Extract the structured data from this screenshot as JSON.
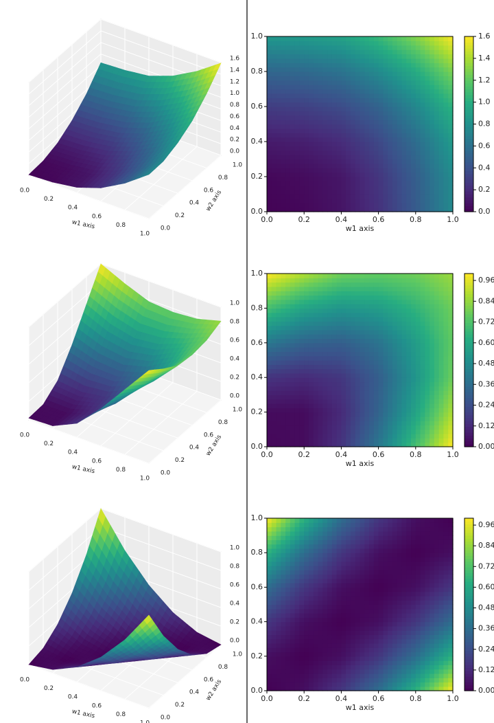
{
  "chart_data": [
    {
      "type": "surface3d",
      "colormap": "viridis",
      "xlabel": "w1 axis",
      "ylabel": "w2 axis",
      "x": [
        0,
        0.2,
        0.4,
        0.6,
        0.8,
        1
      ],
      "y": [
        0,
        0.2,
        0.4,
        0.6,
        0.8,
        1
      ],
      "z": [
        [
          0.01,
          0.03,
          0.09,
          0.23,
          0.46,
          0.76
        ],
        [
          0.03,
          0.05,
          0.1,
          0.25,
          0.48,
          0.77
        ],
        [
          0.12,
          0.14,
          0.2,
          0.35,
          0.57,
          0.87
        ],
        [
          0.29,
          0.31,
          0.37,
          0.51,
          0.74,
          1.03
        ],
        [
          0.53,
          0.55,
          0.61,
          0.76,
          0.98,
          1.28
        ],
        [
          0.85,
          0.87,
          0.92,
          1.07,
          1.3,
          1.59
        ]
      ],
      "xlim": [
        0,
        1
      ],
      "ylim": [
        0,
        1
      ],
      "zlim": [
        0,
        1.6
      ],
      "xticks": [
        {
          "value": 0,
          "label": "0.0"
        },
        {
          "value": 0.2,
          "label": "0.2"
        },
        {
          "value": 0.4,
          "label": "0.4"
        },
        {
          "value": 0.6,
          "label": "0.6"
        },
        {
          "value": 0.8,
          "label": "0.8"
        },
        {
          "value": 1,
          "label": "1.0"
        }
      ],
      "yticks": [
        {
          "value": 0,
          "label": "0.0"
        },
        {
          "value": 0.2,
          "label": "0.2"
        },
        {
          "value": 0.4,
          "label": "0.4"
        },
        {
          "value": 0.6,
          "label": "0.6"
        },
        {
          "value": 0.8,
          "label": "0.8"
        },
        {
          "value": 1,
          "label": "1.0"
        }
      ],
      "zticks": [
        {
          "value": 0,
          "label": "0.0"
        },
        {
          "value": 0.2,
          "label": "0.2"
        },
        {
          "value": 0.4,
          "label": "0.4"
        },
        {
          "value": 0.6,
          "label": "0.6"
        },
        {
          "value": 0.8,
          "label": "0.8"
        },
        {
          "value": 1,
          "label": "1.0"
        },
        {
          "value": 1.2,
          "label": "1.2"
        },
        {
          "value": 1.4,
          "label": "1.4"
        },
        {
          "value": 1.6,
          "label": "1.6"
        }
      ]
    },
    {
      "type": "contour",
      "colormap": "viridis",
      "xlabel": "w1 axis",
      "x": [
        0,
        0.2,
        0.4,
        0.6,
        0.8,
        1
      ],
      "y": [
        0,
        0.2,
        0.4,
        0.6,
        0.8,
        1
      ],
      "z": [
        [
          0.01,
          0.03,
          0.09,
          0.23,
          0.46,
          0.76
        ],
        [
          0.03,
          0.05,
          0.1,
          0.25,
          0.48,
          0.77
        ],
        [
          0.12,
          0.14,
          0.2,
          0.35,
          0.57,
          0.87
        ],
        [
          0.29,
          0.31,
          0.37,
          0.51,
          0.74,
          1.03
        ],
        [
          0.53,
          0.55,
          0.61,
          0.76,
          0.98,
          1.28
        ],
        [
          0.85,
          0.87,
          0.92,
          1.07,
          1.3,
          1.59
        ]
      ],
      "xlim": [
        0,
        1
      ],
      "ylim": [
        0,
        1
      ],
      "clim": [
        0,
        1.6
      ],
      "xticks": [
        {
          "value": 0,
          "label": "0.0"
        },
        {
          "value": 0.2,
          "label": "0.2"
        },
        {
          "value": 0.4,
          "label": "0.4"
        },
        {
          "value": 0.6,
          "label": "0.6"
        },
        {
          "value": 0.8,
          "label": "0.8"
        },
        {
          "value": 1,
          "label": "1.0"
        }
      ],
      "yticks": [
        {
          "value": 0,
          "label": "0.0"
        },
        {
          "value": 0.2,
          "label": "0.2"
        },
        {
          "value": 0.4,
          "label": "0.4"
        },
        {
          "value": 0.6,
          "label": "0.6"
        },
        {
          "value": 0.8,
          "label": "0.8"
        },
        {
          "value": 1,
          "label": "1.0"
        }
      ],
      "cticks": [
        {
          "value": 0,
          "label": "0.0"
        },
        {
          "value": 0.2,
          "label": "0.2"
        },
        {
          "value": 0.4,
          "label": "0.4"
        },
        {
          "value": 0.6,
          "label": "0.6"
        },
        {
          "value": 0.8,
          "label": "0.8"
        },
        {
          "value": 1,
          "label": "1.0"
        },
        {
          "value": 1.2,
          "label": "1.2"
        },
        {
          "value": 1.4,
          "label": "1.4"
        },
        {
          "value": 1.6,
          "label": "1.6"
        }
      ]
    },
    {
      "type": "surface3d",
      "colormap": "viridis",
      "xlabel": "w1 axis",
      "ylabel": "w2 axis",
      "x": [
        0,
        0.2,
        0.4,
        0.6,
        0.8,
        1
      ],
      "y": [
        0,
        0.2,
        0.4,
        0.6,
        0.8,
        1
      ],
      "z": [
        [
          0.02,
          0.03,
          0.15,
          0.4,
          0.7,
          1.0
        ],
        [
          0.03,
          0.03,
          0.12,
          0.32,
          0.58,
          0.88
        ],
        [
          0.15,
          0.12,
          0.16,
          0.3,
          0.52,
          0.78
        ],
        [
          0.4,
          0.32,
          0.3,
          0.38,
          0.55,
          0.76
        ],
        [
          0.7,
          0.58,
          0.52,
          0.55,
          0.65,
          0.78
        ],
        [
          1.0,
          0.88,
          0.78,
          0.76,
          0.78,
          0.85
        ]
      ],
      "xlim": [
        0,
        1
      ],
      "ylim": [
        0,
        1
      ],
      "zlim": [
        0,
        1
      ],
      "xticks": [
        {
          "value": 0,
          "label": "0.0"
        },
        {
          "value": 0.2,
          "label": "0.2"
        },
        {
          "value": 0.4,
          "label": "0.4"
        },
        {
          "value": 0.6,
          "label": "0.6"
        },
        {
          "value": 0.8,
          "label": "0.8"
        },
        {
          "value": 1,
          "label": "1.0"
        }
      ],
      "yticks": [
        {
          "value": 0,
          "label": "0.0"
        },
        {
          "value": 0.2,
          "label": "0.2"
        },
        {
          "value": 0.4,
          "label": "0.4"
        },
        {
          "value": 0.6,
          "label": "0.6"
        },
        {
          "value": 0.8,
          "label": "0.8"
        },
        {
          "value": 1,
          "label": "1.0"
        }
      ],
      "zticks": [
        {
          "value": 0,
          "label": "0.0"
        },
        {
          "value": 0.2,
          "label": "0.2"
        },
        {
          "value": 0.4,
          "label": "0.4"
        },
        {
          "value": 0.6,
          "label": "0.6"
        },
        {
          "value": 0.8,
          "label": "0.8"
        },
        {
          "value": 1,
          "label": "1.0"
        }
      ]
    },
    {
      "type": "contour",
      "colormap": "viridis",
      "xlabel": "w1 axis",
      "x": [
        0,
        0.2,
        0.4,
        0.6,
        0.8,
        1
      ],
      "y": [
        0,
        0.2,
        0.4,
        0.6,
        0.8,
        1
      ],
      "z": [
        [
          0.02,
          0.03,
          0.15,
          0.4,
          0.7,
          1.0
        ],
        [
          0.03,
          0.03,
          0.12,
          0.32,
          0.58,
          0.88
        ],
        [
          0.15,
          0.12,
          0.16,
          0.3,
          0.52,
          0.78
        ],
        [
          0.4,
          0.32,
          0.3,
          0.38,
          0.55,
          0.76
        ],
        [
          0.7,
          0.58,
          0.52,
          0.55,
          0.65,
          0.78
        ],
        [
          1.0,
          0.88,
          0.78,
          0.76,
          0.78,
          0.85
        ]
      ],
      "xlim": [
        0,
        1
      ],
      "ylim": [
        0,
        1
      ],
      "clim": [
        0,
        1
      ],
      "xticks": [
        {
          "value": 0,
          "label": "0.0"
        },
        {
          "value": 0.2,
          "label": "0.2"
        },
        {
          "value": 0.4,
          "label": "0.4"
        },
        {
          "value": 0.6,
          "label": "0.6"
        },
        {
          "value": 0.8,
          "label": "0.8"
        },
        {
          "value": 1,
          "label": "1.0"
        }
      ],
      "yticks": [
        {
          "value": 0,
          "label": "0.0"
        },
        {
          "value": 0.2,
          "label": "0.2"
        },
        {
          "value": 0.4,
          "label": "0.4"
        },
        {
          "value": 0.6,
          "label": "0.6"
        },
        {
          "value": 0.8,
          "label": "0.8"
        },
        {
          "value": 1,
          "label": "1.0"
        }
      ],
      "cticks": [
        {
          "value": 0,
          "label": "0.00"
        },
        {
          "value": 0.12,
          "label": "0.12"
        },
        {
          "value": 0.24,
          "label": "0.24"
        },
        {
          "value": 0.36,
          "label": "0.36"
        },
        {
          "value": 0.48,
          "label": "0.48"
        },
        {
          "value": 0.6,
          "label": "0.60"
        },
        {
          "value": 0.72,
          "label": "0.72"
        },
        {
          "value": 0.84,
          "label": "0.84"
        },
        {
          "value": 0.96,
          "label": "0.96"
        }
      ]
    },
    {
      "type": "surface3d",
      "colormap": "viridis",
      "xlabel": "w1 axis",
      "ylabel": "w2 axis",
      "x": [
        0,
        0.2,
        0.4,
        0.6,
        0.8,
        1
      ],
      "y": [
        0,
        0.2,
        0.4,
        0.6,
        0.8,
        1
      ],
      "z": [
        [
          0,
          0.04,
          0.16,
          0.36,
          0.64,
          1.0
        ],
        [
          0.04,
          0,
          0.04,
          0.16,
          0.36,
          0.64
        ],
        [
          0.16,
          0.04,
          0,
          0.04,
          0.16,
          0.36
        ],
        [
          0.36,
          0.16,
          0.04,
          0,
          0.04,
          0.16
        ],
        [
          0.64,
          0.36,
          0.16,
          0.04,
          0,
          0.04
        ],
        [
          1.0,
          0.64,
          0.36,
          0.16,
          0.04,
          0
        ]
      ],
      "xlim": [
        0,
        1
      ],
      "ylim": [
        0,
        1
      ],
      "zlim": [
        0,
        1
      ],
      "xticks": [
        {
          "value": 0,
          "label": "0.0"
        },
        {
          "value": 0.2,
          "label": "0.2"
        },
        {
          "value": 0.4,
          "label": "0.4"
        },
        {
          "value": 0.6,
          "label": "0.6"
        },
        {
          "value": 0.8,
          "label": "0.8"
        },
        {
          "value": 1,
          "label": "1.0"
        }
      ],
      "yticks": [
        {
          "value": 0,
          "label": "0.0"
        },
        {
          "value": 0.2,
          "label": "0.2"
        },
        {
          "value": 0.4,
          "label": "0.4"
        },
        {
          "value": 0.6,
          "label": "0.6"
        },
        {
          "value": 0.8,
          "label": "0.8"
        },
        {
          "value": 1,
          "label": "1.0"
        }
      ],
      "zticks": [
        {
          "value": 0,
          "label": "0.0"
        },
        {
          "value": 0.2,
          "label": "0.2"
        },
        {
          "value": 0.4,
          "label": "0.4"
        },
        {
          "value": 0.6,
          "label": "0.6"
        },
        {
          "value": 0.8,
          "label": "0.8"
        },
        {
          "value": 1,
          "label": "1.0"
        }
      ]
    },
    {
      "type": "contour",
      "colormap": "viridis",
      "xlabel": "w1 axis",
      "x": [
        0,
        0.2,
        0.4,
        0.6,
        0.8,
        1
      ],
      "y": [
        0,
        0.2,
        0.4,
        0.6,
        0.8,
        1
      ],
      "z": [
        [
          0,
          0.04,
          0.16,
          0.36,
          0.64,
          1.0
        ],
        [
          0.04,
          0,
          0.04,
          0.16,
          0.36,
          0.64
        ],
        [
          0.16,
          0.04,
          0,
          0.04,
          0.16,
          0.36
        ],
        [
          0.36,
          0.16,
          0.04,
          0,
          0.04,
          0.16
        ],
        [
          0.64,
          0.36,
          0.16,
          0.04,
          0,
          0.04
        ],
        [
          1.0,
          0.64,
          0.36,
          0.16,
          0.04,
          0
        ]
      ],
      "xlim": [
        0,
        1
      ],
      "ylim": [
        0,
        1
      ],
      "clim": [
        0,
        1
      ],
      "xticks": [
        {
          "value": 0,
          "label": "0.0"
        },
        {
          "value": 0.2,
          "label": "0.2"
        },
        {
          "value": 0.4,
          "label": "0.4"
        },
        {
          "value": 0.6,
          "label": "0.6"
        },
        {
          "value": 0.8,
          "label": "0.8"
        },
        {
          "value": 1,
          "label": "1.0"
        }
      ],
      "yticks": [
        {
          "value": 0,
          "label": "0.0"
        },
        {
          "value": 0.2,
          "label": "0.2"
        },
        {
          "value": 0.4,
          "label": "0.4"
        },
        {
          "value": 0.6,
          "label": "0.6"
        },
        {
          "value": 0.8,
          "label": "0.8"
        },
        {
          "value": 1,
          "label": "1.0"
        }
      ],
      "cticks": [
        {
          "value": 0,
          "label": "0.00"
        },
        {
          "value": 0.12,
          "label": "0.12"
        },
        {
          "value": 0.24,
          "label": "0.24"
        },
        {
          "value": 0.36,
          "label": "0.36"
        },
        {
          "value": 0.48,
          "label": "0.48"
        },
        {
          "value": 0.6,
          "label": "0.60"
        },
        {
          "value": 0.72,
          "label": "0.72"
        },
        {
          "value": 0.84,
          "label": "0.84"
        },
        {
          "value": 0.96,
          "label": "0.96"
        }
      ]
    }
  ]
}
